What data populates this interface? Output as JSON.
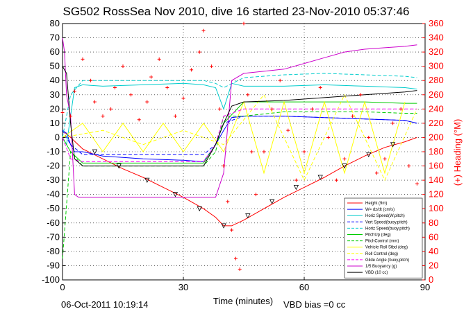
{
  "chart_data": {
    "type": "line",
    "title": "SG502 RossSea Nov 2010, dive 16 started 23-Nov-2010 05:37:46",
    "xlabel": "Time (minutes)",
    "ylabel_right": "(+) Heading (°M)",
    "xlim": [
      0,
      90
    ],
    "ylim_left": [
      -100,
      80
    ],
    "ylim_right": [
      0,
      360
    ],
    "x_ticks": [
      "0",
      "30",
      "60",
      "90"
    ],
    "y_ticks_left": [
      "80",
      "70",
      "60",
      "50",
      "40",
      "30",
      "20",
      "10",
      "0",
      "-10",
      "-20",
      "-30",
      "-40",
      "-50",
      "-60",
      "-70",
      "-80",
      "-90",
      "-100"
    ],
    "y_ticks_right": [
      "360",
      "340",
      "320",
      "300",
      "280",
      "260",
      "240",
      "220",
      "200",
      "180",
      "160",
      "140",
      "120",
      "100",
      "80",
      "60",
      "40",
      "20",
      "0"
    ],
    "grid": true,
    "legend_position": "lower-right",
    "footer_left": "06-Oct-2011 10:19:14",
    "footer_right": "VBD bias =0 cc",
    "series": [
      {
        "name": "Height (9m)",
        "color": "#ff0000",
        "style": "solid",
        "x": [
          0,
          2,
          5,
          10,
          15,
          20,
          25,
          30,
          35,
          38,
          40,
          42,
          45,
          50,
          55,
          60,
          65,
          70,
          75,
          80,
          85,
          88
        ],
        "y": [
          5,
          0,
          -8,
          -15,
          -22,
          -28,
          -35,
          -42,
          -50,
          -56,
          -62,
          -62,
          -58,
          -50,
          -42,
          -35,
          -28,
          -20,
          -13,
          -7,
          -3,
          0
        ]
      },
      {
        "name": "W= dz/dt (cm/s)",
        "color": "#0000ff",
        "style": "solid",
        "x": [
          0,
          1,
          2,
          3,
          5,
          10,
          20,
          30,
          35,
          38,
          40,
          42,
          45,
          55,
          65,
          75,
          85,
          88
        ],
        "y": [
          5,
          3,
          -5,
          -10,
          -10,
          -13,
          -15,
          -16,
          -17,
          -5,
          5,
          14,
          15,
          15,
          14,
          13,
          12,
          10
        ]
      },
      {
        "name": "Horiz Speed(W,pitch)",
        "color": "#00cccc",
        "style": "solid",
        "x": [
          0,
          1,
          3,
          5,
          10,
          20,
          30,
          35,
          38,
          40,
          42,
          45,
          55,
          65,
          75,
          85,
          88
        ],
        "y": [
          0,
          -5,
          35,
          37,
          36,
          37,
          38,
          37,
          35,
          20,
          38,
          36,
          36,
          37,
          36,
          35,
          34
        ]
      },
      {
        "name": "Vert Speed(buoy,pitch)",
        "color": "#0000ff",
        "style": "dashed",
        "x": [
          0,
          2,
          5,
          10,
          20,
          30,
          35,
          38,
          40,
          45,
          55,
          65,
          75,
          85,
          88
        ],
        "y": [
          5,
          -5,
          -12,
          -12,
          -12,
          -12,
          -12,
          -5,
          10,
          15,
          15,
          14,
          13,
          12,
          10
        ]
      },
      {
        "name": "Horiz Speed(buoy,pitch)",
        "color": "#00cccc",
        "style": "dashed",
        "x": [
          0,
          2,
          5,
          10,
          20,
          30,
          35,
          38,
          40,
          45,
          55,
          65,
          75,
          85,
          88
        ],
        "y": [
          0,
          30,
          40,
          40,
          40,
          40,
          40,
          38,
          35,
          42,
          44,
          45,
          44,
          43,
          42
        ]
      },
      {
        "name": "PitchUp (deg)",
        "color": "#00cc00",
        "style": "solid",
        "x": [
          0,
          2,
          5,
          10,
          20,
          30,
          35,
          38,
          40,
          45,
          55,
          65,
          75,
          85,
          88
        ],
        "y": [
          0,
          -10,
          -18,
          -18,
          -18,
          -18,
          -18,
          -5,
          10,
          25,
          25,
          25,
          25,
          24,
          24
        ]
      },
      {
        "name": "PitchControl (mm)",
        "color": "#00cc00",
        "style": "dashed",
        "x": [
          0,
          2,
          5,
          10,
          20,
          30,
          35,
          38,
          40,
          45,
          55,
          65,
          75,
          85,
          88
        ],
        "y": [
          -85,
          -10,
          -20,
          -20,
          -20,
          -20,
          -20,
          -10,
          15,
          15,
          18,
          18,
          18,
          17,
          17
        ]
      },
      {
        "name": "Vehicle Roll Stbd (deg)",
        "color": "#ffff00",
        "style": "solid",
        "x": [
          0,
          5,
          10,
          15,
          20,
          25,
          30,
          35,
          40,
          45,
          50,
          55,
          60,
          65,
          70,
          75,
          80,
          85
        ],
        "y": [
          0,
          10,
          -10,
          10,
          -10,
          10,
          -10,
          10,
          -10,
          25,
          -25,
          25,
          -25,
          25,
          -25,
          25,
          -25,
          25
        ]
      },
      {
        "name": "Roll Control (deg)",
        "color": "#ffff00",
        "style": "dashed",
        "x": [
          0,
          10,
          20,
          30,
          40,
          50,
          60,
          70,
          80,
          88
        ],
        "y": [
          0,
          5,
          -5,
          5,
          -5,
          30,
          -30,
          30,
          -30,
          20
        ]
      },
      {
        "name": "Glide Angle (buoy,pitch)",
        "color": "#ff00ff",
        "style": "dashed",
        "x": [
          0,
          2,
          5,
          10,
          20,
          30,
          35,
          38,
          40,
          45,
          55,
          65,
          75,
          85,
          88
        ],
        "y": [
          0,
          -15,
          -17,
          -17,
          -17,
          -17,
          -17,
          -5,
          15,
          20,
          20,
          20,
          20,
          20,
          20
        ]
      },
      {
        "name": "1/5 Buoyancy (g)",
        "color": "#cc00cc",
        "style": "solid",
        "x": [
          0,
          0.5,
          1,
          2,
          3,
          4,
          10,
          20,
          30,
          35,
          38,
          40,
          42,
          45,
          55,
          60,
          65,
          70,
          75,
          80,
          85,
          88
        ],
        "y": [
          70,
          60,
          30,
          15,
          -40,
          -42,
          -42,
          -42,
          -42,
          -42,
          -42,
          -25,
          40,
          45,
          48,
          52,
          56,
          60,
          62,
          63,
          64,
          65
        ]
      },
      {
        "name": "VBD (10 cc)",
        "color": "#000000",
        "style": "solid",
        "x": [
          0,
          1,
          2,
          3,
          5,
          10,
          20,
          30,
          35,
          38,
          40,
          42,
          45,
          55,
          65,
          75,
          85,
          88
        ],
        "y": [
          50,
          45,
          10,
          -15,
          -20,
          -20,
          -20,
          -20,
          -20,
          -5,
          10,
          22,
          25,
          26,
          28,
          30,
          32,
          33
        ]
      }
    ],
    "heading_series": {
      "color": "#ff0000",
      "marker": "+",
      "x": [
        0,
        2,
        3,
        5,
        7,
        8,
        10,
        12,
        13,
        15,
        17,
        19,
        21,
        22,
        24,
        26,
        28,
        30,
        32,
        34,
        35,
        37,
        39,
        40,
        41,
        42,
        43,
        44,
        45,
        46,
        47,
        48,
        50,
        52,
        54,
        56,
        58,
        60,
        62,
        64,
        66,
        68,
        70,
        72,
        74,
        76,
        78,
        80,
        82,
        84,
        86,
        88
      ],
      "y": [
        235,
        230,
        265,
        310,
        280,
        250,
        230,
        240,
        270,
        300,
        260,
        225,
        250,
        285,
        310,
        270,
        230,
        255,
        295,
        320,
        350,
        300,
        240,
        160,
        110,
        70,
        30,
        15,
        360,
        260,
        180,
        120,
        180,
        240,
        280,
        210,
        140,
        180,
        240,
        270,
        200,
        140,
        170,
        230,
        260,
        200,
        150,
        170,
        220,
        240,
        160,
        135
      ]
    },
    "triangle_markers": {
      "x": [
        8,
        14,
        21,
        28,
        34,
        40,
        46,
        52,
        58,
        64,
        70,
        76,
        82
      ],
      "y": [
        -10,
        -20,
        -30,
        -40,
        -50,
        -62,
        -55,
        -45,
        -35,
        -28,
        -20,
        -12,
        -5
      ]
    }
  }
}
